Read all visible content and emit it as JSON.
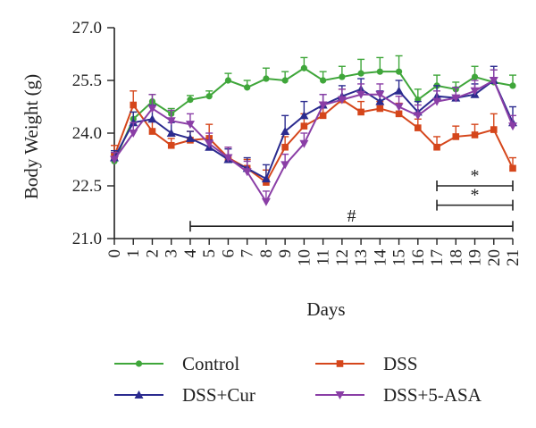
{
  "chart_data": {
    "type": "line",
    "title": "",
    "xlabel": "Days",
    "ylabel": "Body Weight (g)",
    "x": [
      0,
      1,
      2,
      3,
      4,
      5,
      6,
      7,
      8,
      9,
      10,
      11,
      12,
      13,
      14,
      15,
      16,
      17,
      18,
      19,
      20,
      21
    ],
    "x_tick_labels": [
      "0",
      "1",
      "2",
      "3",
      "4",
      "5",
      "6",
      "7",
      "8",
      "9",
      "10",
      "11",
      "12",
      "13",
      "14",
      "15",
      "16",
      "17",
      "18",
      "19",
      "20",
      "21"
    ],
    "y_tick_labels": [
      "21.0",
      "22.5",
      "24.0",
      "25.5",
      "27.0"
    ],
    "y_ticks": [
      21.0,
      22.5,
      24.0,
      25.5,
      27.0
    ],
    "xlim": [
      0,
      21
    ],
    "ylim": [
      21.0,
      27.0
    ],
    "grid": false,
    "legend_position": "bottom",
    "series": [
      {
        "name": "Control",
        "color": "#3fa63a",
        "marker": "circle",
        "values": [
          23.2,
          24.4,
          24.9,
          24.55,
          24.95,
          25.05,
          25.5,
          25.3,
          25.55,
          25.5,
          25.85,
          25.5,
          25.6,
          25.7,
          25.75,
          25.75,
          24.95,
          25.35,
          25.25,
          25.6,
          25.45,
          25.35
        ],
        "errors": [
          0.2,
          0.2,
          0.2,
          0.15,
          0.12,
          0.15,
          0.2,
          0.2,
          0.3,
          0.25,
          0.3,
          0.25,
          0.3,
          0.4,
          0.4,
          0.45,
          0.3,
          0.3,
          0.2,
          0.3,
          0.35,
          0.3
        ]
      },
      {
        "name": "DSS",
        "color": "#d5461b",
        "marker": "square",
        "values": [
          23.35,
          24.8,
          24.05,
          23.65,
          23.8,
          23.85,
          23.3,
          23.0,
          22.6,
          23.6,
          24.2,
          24.5,
          24.95,
          24.6,
          24.7,
          24.55,
          24.15,
          23.6,
          23.9,
          23.95,
          24.1,
          23.0
        ],
        "errors": [
          0.3,
          0.4,
          0.3,
          0.2,
          0.25,
          0.4,
          0.3,
          0.25,
          0.35,
          0.3,
          0.35,
          0.25,
          0.3,
          0.3,
          0.2,
          0.3,
          0.25,
          0.3,
          0.3,
          0.3,
          0.45,
          0.3
        ]
      },
      {
        "name": "DSS+Cur",
        "color": "#2b2b8f",
        "marker": "triangle-up",
        "values": [
          23.3,
          24.3,
          24.4,
          24.0,
          23.85,
          23.6,
          23.25,
          23.0,
          22.7,
          24.05,
          24.5,
          24.8,
          25.05,
          25.25,
          24.9,
          25.2,
          24.6,
          25.05,
          25.0,
          25.1,
          25.5,
          24.3
        ],
        "errors": [
          0.2,
          0.3,
          0.4,
          0.3,
          0.2,
          0.2,
          0.3,
          0.3,
          0.4,
          0.45,
          0.4,
          0.3,
          0.3,
          0.3,
          0.3,
          0.3,
          0.3,
          0.3,
          0.3,
          0.3,
          0.4,
          0.45
        ]
      },
      {
        "name": "DSS+5-ASA",
        "color": "#8a3ea6",
        "marker": "triangle-down",
        "values": [
          23.25,
          24.0,
          24.7,
          24.35,
          24.25,
          23.7,
          23.3,
          22.9,
          22.05,
          23.1,
          23.7,
          24.8,
          24.95,
          25.1,
          25.1,
          24.75,
          24.5,
          24.9,
          25.0,
          25.2,
          25.5,
          24.2
        ],
        "errors": [
          0.2,
          0.3,
          0.4,
          0.3,
          0.3,
          0.3,
          0.3,
          0.3,
          0.3,
          0.3,
          0.3,
          0.3,
          0.3,
          0.3,
          0.3,
          0.3,
          0.3,
          0.3,
          0.3,
          0.3,
          0.3,
          0.3
        ]
      }
    ],
    "annotations": [
      {
        "text": "#",
        "x_start": 4,
        "x_end": 21,
        "y": 21.35
      },
      {
        "text": "*",
        "x_start": 17,
        "x_end": 21,
        "y": 21.95
      },
      {
        "text": "*",
        "x_start": 17,
        "x_end": 21,
        "y": 22.5
      }
    ]
  }
}
